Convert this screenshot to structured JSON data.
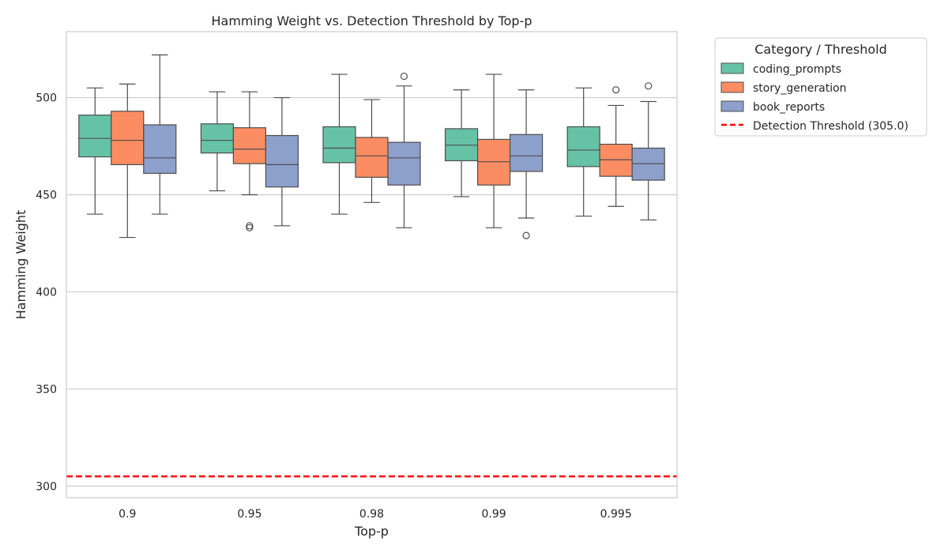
{
  "chart_data": {
    "type": "box",
    "title": "Hamming Weight vs. Detection Threshold by Top-p",
    "xlabel": "Top-p",
    "ylabel": "Hamming Weight",
    "ylim": [
      294,
      534
    ],
    "yticks": [
      300,
      350,
      400,
      450,
      500
    ],
    "grid": true,
    "legend_position": "outside-top-right",
    "legend_title": "Category / Threshold",
    "categories": [
      "0.9",
      "0.95",
      "0.98",
      "0.99",
      "0.995"
    ],
    "series": [
      {
        "name": "coding_prompts",
        "color": "#66c2a5",
        "boxes": [
          {
            "whislo": 440,
            "q1": 469.5,
            "med": 479,
            "q3": 491,
            "whishi": 505,
            "fliers": []
          },
          {
            "whislo": 452,
            "q1": 471.5,
            "med": 478,
            "q3": 486.5,
            "whishi": 503,
            "fliers": []
          },
          {
            "whislo": 440,
            "q1": 466.5,
            "med": 474,
            "q3": 485,
            "whishi": 512,
            "fliers": []
          },
          {
            "whislo": 449,
            "q1": 467.5,
            "med": 475.5,
            "q3": 484,
            "whishi": 504,
            "fliers": []
          },
          {
            "whislo": 439,
            "q1": 464.5,
            "med": 473,
            "q3": 485,
            "whishi": 505,
            "fliers": []
          }
        ]
      },
      {
        "name": "story_generation",
        "color": "#fc8d62",
        "boxes": [
          {
            "whislo": 428,
            "q1": 465.5,
            "med": 478,
            "q3": 493,
            "whishi": 507,
            "fliers": []
          },
          {
            "whislo": 450,
            "q1": 466,
            "med": 473.5,
            "q3": 484.5,
            "whishi": 503,
            "fliers": [
              434,
              433
            ]
          },
          {
            "whislo": 446,
            "q1": 459,
            "med": 470,
            "q3": 479.5,
            "whishi": 499,
            "fliers": []
          },
          {
            "whislo": 433,
            "q1": 455,
            "med": 467,
            "q3": 478.5,
            "whishi": 512,
            "fliers": []
          },
          {
            "whislo": 444,
            "q1": 459.5,
            "med": 468,
            "q3": 476,
            "whishi": 496,
            "fliers": [
              504
            ]
          }
        ]
      },
      {
        "name": "book_reports",
        "color": "#8da0cb",
        "boxes": [
          {
            "whislo": 440,
            "q1": 461,
            "med": 469,
            "q3": 486,
            "whishi": 522,
            "fliers": []
          },
          {
            "whislo": 434,
            "q1": 454,
            "med": 465.5,
            "q3": 480.5,
            "whishi": 500,
            "fliers": []
          },
          {
            "whislo": 433,
            "q1": 455,
            "med": 469,
            "q3": 477,
            "whishi": 506,
            "fliers": [
              511
            ]
          },
          {
            "whislo": 438,
            "q1": 462,
            "med": 470,
            "q3": 481,
            "whishi": 504,
            "fliers": [
              429
            ]
          },
          {
            "whislo": 437,
            "q1": 457.5,
            "med": 466,
            "q3": 474,
            "whishi": 498,
            "fliers": [
              506
            ]
          }
        ]
      }
    ],
    "threshold": {
      "name": "Detection Threshold (305.0)",
      "value": 305.0,
      "color": "#ff0000"
    }
  }
}
